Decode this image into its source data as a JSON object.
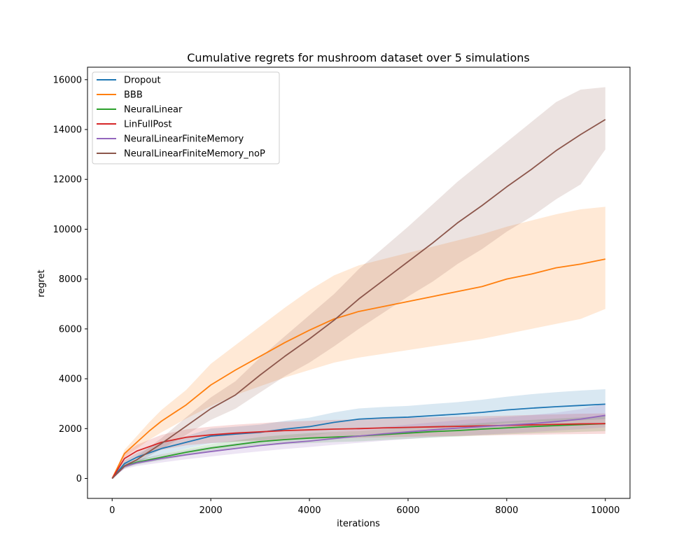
{
  "chart_data": {
    "type": "line",
    "title": "Cumulative regrets for mushroom dataset over 5 simulations",
    "xlabel": "iterations",
    "ylabel": "regret",
    "xlim": [
      -500,
      10500
    ],
    "ylim": [
      -800,
      16500
    ],
    "xticks": [
      "0",
      "2000",
      "4000",
      "6000",
      "8000",
      "10000"
    ],
    "yticks": [
      "0",
      "2000",
      "4000",
      "6000",
      "8000",
      "10000",
      "12000",
      "14000",
      "16000"
    ],
    "legend_position": "top-left",
    "series": [
      {
        "name": "Dropout",
        "color": "#1f77b4",
        "x": [
          0,
          250,
          500,
          1000,
          1500,
          2000,
          2500,
          3000,
          3500,
          4000,
          4500,
          5000,
          5500,
          6000,
          6500,
          7000,
          7500,
          8000,
          8500,
          9000,
          9500,
          10000
        ],
        "y": [
          0,
          600,
          850,
          1200,
          1450,
          1700,
          1780,
          1850,
          1980,
          2080,
          2250,
          2380,
          2430,
          2460,
          2520,
          2580,
          2650,
          2750,
          2820,
          2880,
          2930,
          2980
        ],
        "band_low": [
          0,
          480,
          680,
          960,
          1200,
          1400,
          1480,
          1540,
          1650,
          1720,
          1850,
          1950,
          1990,
          2010,
          2050,
          2100,
          2140,
          2220,
          2260,
          2300,
          2330,
          2380
        ],
        "band_high": [
          0,
          720,
          1020,
          1440,
          1700,
          2000,
          2080,
          2160,
          2310,
          2440,
          2650,
          2810,
          2870,
          2910,
          2990,
          3060,
          3160,
          3280,
          3380,
          3460,
          3530,
          3580
        ]
      },
      {
        "name": "BBB",
        "color": "#ff7f0e",
        "x": [
          0,
          250,
          500,
          750,
          1000,
          1500,
          2000,
          2500,
          3000,
          3500,
          4000,
          4500,
          5000,
          5500,
          6000,
          6500,
          7000,
          7500,
          8000,
          8500,
          9000,
          9500,
          10000
        ],
        "y": [
          0,
          1000,
          1450,
          1900,
          2300,
          2950,
          3750,
          4350,
          4900,
          5450,
          5950,
          6400,
          6700,
          6900,
          7100,
          7300,
          7500,
          7700,
          8000,
          8200,
          8450,
          8600,
          8800
        ],
        "band_low": [
          0,
          850,
          1200,
          1550,
          1850,
          2400,
          2900,
          3350,
          3700,
          4050,
          4350,
          4650,
          4850,
          5000,
          5150,
          5300,
          5450,
          5600,
          5800,
          6000,
          6200,
          6400,
          6800
        ],
        "band_high": [
          0,
          1150,
          1700,
          2250,
          2750,
          3550,
          4600,
          5350,
          6100,
          6850,
          7550,
          8150,
          8550,
          8800,
          9050,
          9300,
          9550,
          9800,
          10100,
          10350,
          10600,
          10800,
          10900
        ]
      },
      {
        "name": "NeuralLinear",
        "color": "#2ca02c",
        "x": [
          0,
          250,
          500,
          1000,
          1500,
          2000,
          2500,
          3000,
          3500,
          4000,
          4500,
          5000,
          5500,
          6000,
          6500,
          7000,
          7500,
          8000,
          8500,
          9000,
          9500,
          10000
        ],
        "y": [
          0,
          500,
          650,
          850,
          1050,
          1220,
          1350,
          1480,
          1560,
          1620,
          1660,
          1700,
          1760,
          1820,
          1880,
          1920,
          1980,
          2030,
          2080,
          2120,
          2160,
          2200
        ],
        "band_low": [
          0,
          420,
          560,
          730,
          910,
          1060,
          1180,
          1300,
          1370,
          1420,
          1460,
          1490,
          1540,
          1590,
          1640,
          1680,
          1730,
          1770,
          1810,
          1840,
          1870,
          1900
        ],
        "band_high": [
          0,
          580,
          740,
          970,
          1190,
          1380,
          1520,
          1660,
          1750,
          1820,
          1860,
          1910,
          1980,
          2050,
          2120,
          2160,
          2230,
          2290,
          2350,
          2400,
          2450,
          2500
        ]
      },
      {
        "name": "LinFullPost",
        "color": "#d62728",
        "x": [
          0,
          250,
          500,
          1000,
          1500,
          2000,
          2500,
          3000,
          3500,
          4000,
          4500,
          5000,
          5500,
          6000,
          6500,
          7000,
          7500,
          8000,
          8500,
          9000,
          9500,
          10000
        ],
        "y": [
          0,
          800,
          1100,
          1450,
          1650,
          1750,
          1820,
          1870,
          1920,
          1950,
          1980,
          2000,
          2030,
          2050,
          2070,
          2090,
          2110,
          2130,
          2150,
          2170,
          2190,
          2200
        ],
        "band_low": [
          0,
          600,
          850,
          1150,
          1330,
          1420,
          1480,
          1520,
          1560,
          1590,
          1610,
          1630,
          1650,
          1670,
          1690,
          1700,
          1720,
          1740,
          1750,
          1770,
          1780,
          1790
        ],
        "band_high": [
          0,
          1000,
          1350,
          1750,
          1970,
          2080,
          2160,
          2220,
          2280,
          2310,
          2350,
          2370,
          2410,
          2430,
          2450,
          2480,
          2500,
          2520,
          2550,
          2570,
          2600,
          2610
        ]
      },
      {
        "name": "NeuralLinearFiniteMemory",
        "color": "#9467bd",
        "x": [
          0,
          250,
          500,
          1000,
          1500,
          2000,
          2500,
          3000,
          3500,
          4000,
          4500,
          5000,
          5500,
          6000,
          6500,
          7000,
          7500,
          8000,
          8500,
          9000,
          9500,
          10000
        ],
        "y": [
          0,
          480,
          620,
          800,
          950,
          1080,
          1200,
          1320,
          1420,
          1500,
          1600,
          1700,
          1790,
          1870,
          1950,
          2020,
          2080,
          2140,
          2200,
          2280,
          2380,
          2530
        ],
        "band_low": [
          0,
          380,
          500,
          640,
          770,
          880,
          990,
          1090,
          1180,
          1260,
          1350,
          1430,
          1510,
          1580,
          1650,
          1710,
          1760,
          1810,
          1860,
          1920,
          1980,
          2050
        ],
        "band_high": [
          0,
          580,
          740,
          960,
          1130,
          1280,
          1410,
          1550,
          1660,
          1740,
          1850,
          1970,
          2070,
          2160,
          2250,
          2330,
          2400,
          2470,
          2540,
          2640,
          2780,
          3010
        ]
      },
      {
        "name": "NeuralLinearFiniteMemory_noP",
        "color": "#8c564b",
        "x": [
          0,
          250,
          500,
          1000,
          1500,
          2000,
          2500,
          3000,
          3500,
          4000,
          4500,
          5000,
          5500,
          6000,
          6500,
          7000,
          7500,
          8000,
          8500,
          9000,
          9500,
          10000
        ],
        "y": [
          0,
          500,
          750,
          1400,
          2100,
          2800,
          3350,
          4150,
          4900,
          5600,
          6350,
          7200,
          7950,
          8700,
          9450,
          10250,
          10950,
          11700,
          12400,
          13150,
          13800,
          14400
        ],
        "band_low": [
          0,
          400,
          620,
          1180,
          1750,
          2350,
          2800,
          3450,
          4100,
          4650,
          5300,
          6000,
          6650,
          7300,
          7900,
          8600,
          9200,
          9900,
          10500,
          11200,
          11800,
          13200
        ],
        "band_high": [
          0,
          600,
          880,
          1620,
          2450,
          3250,
          3900,
          4850,
          5700,
          6550,
          7400,
          8400,
          9250,
          10100,
          11000,
          11900,
          12700,
          13500,
          14300,
          15100,
          15600,
          15700
        ]
      }
    ]
  }
}
